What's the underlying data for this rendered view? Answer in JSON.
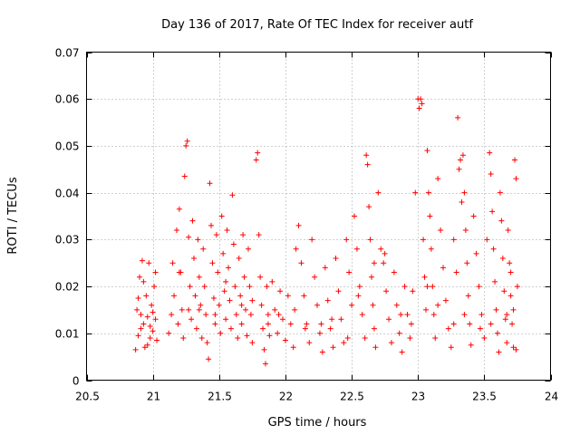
{
  "chart_data": {
    "type": "scatter",
    "title": "Day 136 of 2017, Rate Of TEC Index for receiver autf",
    "xlabel": "GPS time / hours",
    "ylabel": "ROTI / TECUs",
    "xlim": [
      20.5,
      24
    ],
    "ylim": [
      0,
      0.07
    ],
    "xticks": [
      20.5,
      21,
      21.5,
      22,
      22.5,
      23,
      23.5,
      24
    ],
    "xtick_labels": [
      "20.5",
      "21",
      "21.5",
      "22",
      "22.5",
      "23",
      "23.5",
      "24"
    ],
    "yticks": [
      0,
      0.01,
      0.02,
      0.03,
      0.04,
      0.05,
      0.06,
      0.07
    ],
    "ytick_labels": [
      "0",
      "0.01",
      "0.02",
      "0.03",
      "0.04",
      "0.05",
      "0.06",
      "0.07"
    ],
    "grid": true,
    "marker": "+",
    "color": "#ff0000",
    "series": [
      {
        "name": "ROTI",
        "points": [
          [
            20.87,
            0.0065
          ],
          [
            20.88,
            0.015
          ],
          [
            20.89,
            0.0095
          ],
          [
            20.9,
            0.022
          ],
          [
            20.91,
            0.011
          ],
          [
            20.92,
            0.0255
          ],
          [
            20.93,
            0.012
          ],
          [
            20.94,
            0.007
          ],
          [
            20.95,
            0.018
          ],
          [
            20.96,
            0.0135
          ],
          [
            20.97,
            0.025
          ],
          [
            20.98,
            0.009
          ],
          [
            20.99,
            0.016
          ],
          [
            21.0,
            0.0105
          ],
          [
            21.01,
            0.02
          ],
          [
            21.02,
            0.013
          ],
          [
            21.03,
            0.0085
          ],
          [
            20.89,
            0.0175
          ],
          [
            20.93,
            0.021
          ],
          [
            20.96,
            0.0075
          ],
          [
            21.0,
            0.0145
          ],
          [
            21.02,
            0.023
          ],
          [
            20.91,
            0.014
          ],
          [
            20.98,
            0.0115
          ],
          [
            21.12,
            0.01
          ],
          [
            21.14,
            0.014
          ],
          [
            21.15,
            0.025
          ],
          [
            21.16,
            0.018
          ],
          [
            21.18,
            0.032
          ],
          [
            21.19,
            0.012
          ],
          [
            21.2,
            0.0365
          ],
          [
            21.21,
            0.023
          ],
          [
            21.22,
            0.015
          ],
          [
            21.23,
            0.009
          ],
          [
            21.24,
            0.0435
          ],
          [
            21.25,
            0.05
          ],
          [
            21.26,
            0.051
          ],
          [
            21.27,
            0.0305
          ],
          [
            21.28,
            0.02
          ],
          [
            21.29,
            0.013
          ],
          [
            21.3,
            0.034
          ],
          [
            21.31,
            0.026
          ],
          [
            21.32,
            0.018
          ],
          [
            21.33,
            0.011
          ],
          [
            21.34,
            0.03
          ],
          [
            21.35,
            0.022
          ],
          [
            21.36,
            0.016
          ],
          [
            21.37,
            0.009
          ],
          [
            21.38,
            0.028
          ],
          [
            21.39,
            0.02
          ],
          [
            21.4,
            0.014
          ],
          [
            21.41,
            0.008
          ],
          [
            21.42,
            0.0045
          ],
          [
            21.43,
            0.042
          ],
          [
            21.44,
            0.033
          ],
          [
            21.45,
            0.025
          ],
          [
            21.46,
            0.0175
          ],
          [
            21.47,
            0.012
          ],
          [
            21.48,
            0.031
          ],
          [
            21.49,
            0.023
          ],
          [
            21.5,
            0.016
          ],
          [
            21.51,
            0.01
          ],
          [
            21.52,
            0.035
          ],
          [
            21.53,
            0.027
          ],
          [
            21.54,
            0.019
          ],
          [
            21.55,
            0.013
          ],
          [
            21.56,
            0.032
          ],
          [
            21.57,
            0.024
          ],
          [
            21.58,
            0.017
          ],
          [
            21.59,
            0.011
          ],
          [
            21.6,
            0.0395
          ],
          [
            21.61,
            0.029
          ],
          [
            21.62,
            0.02
          ],
          [
            21.63,
            0.014
          ],
          [
            21.64,
            0.009
          ],
          [
            21.65,
            0.026
          ],
          [
            21.66,
            0.018
          ],
          [
            21.67,
            0.012
          ],
          [
            21.68,
            0.031
          ],
          [
            21.69,
            0.022
          ],
          [
            21.7,
            0.015
          ],
          [
            21.71,
            0.0095
          ],
          [
            21.72,
            0.028
          ],
          [
            21.73,
            0.02
          ],
          [
            21.74,
            0.014
          ],
          [
            21.75,
            0.008
          ],
          [
            21.78,
            0.047
          ],
          [
            21.79,
            0.0485
          ],
          [
            21.8,
            0.031
          ],
          [
            21.81,
            0.022
          ],
          [
            21.82,
            0.016
          ],
          [
            21.83,
            0.011
          ],
          [
            21.84,
            0.0065
          ],
          [
            21.85,
            0.0035
          ],
          [
            21.86,
            0.02
          ],
          [
            21.87,
            0.014
          ],
          [
            21.88,
            0.0095
          ],
          [
            21.9,
            0.021
          ],
          [
            21.92,
            0.015
          ],
          [
            21.94,
            0.01
          ],
          [
            21.96,
            0.019
          ],
          [
            21.98,
            0.013
          ],
          [
            22.0,
            0.0085
          ],
          [
            22.02,
            0.018
          ],
          [
            22.04,
            0.012
          ],
          [
            22.06,
            0.007
          ],
          [
            22.08,
            0.028
          ],
          [
            22.1,
            0.033
          ],
          [
            22.12,
            0.025
          ],
          [
            22.14,
            0.018
          ],
          [
            22.16,
            0.012
          ],
          [
            22.18,
            0.008
          ],
          [
            22.2,
            0.03
          ],
          [
            22.22,
            0.022
          ],
          [
            22.24,
            0.016
          ],
          [
            22.26,
            0.01
          ],
          [
            22.28,
            0.006
          ],
          [
            22.3,
            0.024
          ],
          [
            22.32,
            0.017
          ],
          [
            22.34,
            0.011
          ],
          [
            22.36,
            0.007
          ],
          [
            22.38,
            0.026
          ],
          [
            22.4,
            0.019
          ],
          [
            22.42,
            0.013
          ],
          [
            22.44,
            0.008
          ],
          [
            22.46,
            0.03
          ],
          [
            22.48,
            0.023
          ],
          [
            22.5,
            0.016
          ],
          [
            22.52,
            0.035
          ],
          [
            22.54,
            0.028
          ],
          [
            22.56,
            0.02
          ],
          [
            22.58,
            0.014
          ],
          [
            22.6,
            0.009
          ],
          [
            22.61,
            0.048
          ],
          [
            22.62,
            0.046
          ],
          [
            22.63,
            0.037
          ],
          [
            22.64,
            0.03
          ],
          [
            22.65,
            0.022
          ],
          [
            22.66,
            0.016
          ],
          [
            22.67,
            0.011
          ],
          [
            22.68,
            0.007
          ],
          [
            22.7,
            0.04
          ],
          [
            22.72,
            0.028
          ],
          [
            22.74,
            0.025
          ],
          [
            22.76,
            0.019
          ],
          [
            22.78,
            0.013
          ],
          [
            22.8,
            0.008
          ],
          [
            22.82,
            0.023
          ],
          [
            22.84,
            0.016
          ],
          [
            22.86,
            0.01
          ],
          [
            22.88,
            0.006
          ],
          [
            22.9,
            0.02
          ],
          [
            22.92,
            0.014
          ],
          [
            22.94,
            0.009
          ],
          [
            22.96,
            0.019
          ],
          [
            22.98,
            0.04
          ],
          [
            23.0,
            0.06
          ],
          [
            23.01,
            0.058
          ],
          [
            23.02,
            0.06
          ],
          [
            23.03,
            0.059
          ],
          [
            23.04,
            0.03
          ],
          [
            23.05,
            0.022
          ],
          [
            23.06,
            0.015
          ],
          [
            23.07,
            0.049
          ],
          [
            23.08,
            0.04
          ],
          [
            23.09,
            0.035
          ],
          [
            23.1,
            0.028
          ],
          [
            23.11,
            0.02
          ],
          [
            23.12,
            0.014
          ],
          [
            23.13,
            0.009
          ],
          [
            23.15,
            0.043
          ],
          [
            23.17,
            0.032
          ],
          [
            23.19,
            0.024
          ],
          [
            23.21,
            0.017
          ],
          [
            23.23,
            0.011
          ],
          [
            23.25,
            0.007
          ],
          [
            23.27,
            0.03
          ],
          [
            23.29,
            0.023
          ],
          [
            23.3,
            0.056
          ],
          [
            23.31,
            0.045
          ],
          [
            23.32,
            0.047
          ],
          [
            23.33,
            0.038
          ],
          [
            23.34,
            0.048
          ],
          [
            23.35,
            0.04
          ],
          [
            23.36,
            0.032
          ],
          [
            23.37,
            0.025
          ],
          [
            23.38,
            0.018
          ],
          [
            23.39,
            0.012
          ],
          [
            23.4,
            0.0075
          ],
          [
            23.42,
            0.035
          ],
          [
            23.44,
            0.027
          ],
          [
            23.46,
            0.02
          ],
          [
            23.48,
            0.014
          ],
          [
            23.5,
            0.009
          ],
          [
            23.52,
            0.03
          ],
          [
            23.54,
            0.0485
          ],
          [
            23.55,
            0.044
          ],
          [
            23.56,
            0.036
          ],
          [
            23.57,
            0.028
          ],
          [
            23.58,
            0.021
          ],
          [
            23.59,
            0.015
          ],
          [
            23.6,
            0.01
          ],
          [
            23.61,
            0.006
          ],
          [
            23.62,
            0.04
          ],
          [
            23.63,
            0.034
          ],
          [
            23.64,
            0.026
          ],
          [
            23.65,
            0.019
          ],
          [
            23.66,
            0.013
          ],
          [
            23.67,
            0.008
          ],
          [
            23.68,
            0.032
          ],
          [
            23.69,
            0.025
          ],
          [
            23.7,
            0.018
          ],
          [
            23.71,
            0.012
          ],
          [
            23.72,
            0.007
          ],
          [
            23.73,
            0.047
          ],
          [
            23.74,
            0.043
          ],
          [
            23.75,
            0.02
          ],
          [
            23.74,
            0.0065
          ],
          [
            23.72,
            0.015
          ],
          [
            23.7,
            0.023
          ],
          [
            21.2,
            0.023
          ],
          [
            21.35,
            0.015
          ],
          [
            21.55,
            0.021
          ],
          [
            21.75,
            0.017
          ],
          [
            21.95,
            0.014
          ],
          [
            22.15,
            0.011
          ],
          [
            22.35,
            0.013
          ],
          [
            22.55,
            0.018
          ],
          [
            22.75,
            0.027
          ],
          [
            22.95,
            0.012
          ],
          [
            23.15,
            0.016
          ],
          [
            23.35,
            0.014
          ],
          [
            23.55,
            0.012
          ],
          [
            21.27,
            0.015
          ],
          [
            21.47,
            0.014
          ],
          [
            21.67,
            0.016
          ],
          [
            21.87,
            0.012
          ],
          [
            22.07,
            0.015
          ],
          [
            22.27,
            0.012
          ],
          [
            22.47,
            0.009
          ],
          [
            22.67,
            0.025
          ],
          [
            22.87,
            0.014
          ],
          [
            23.07,
            0.02
          ],
          [
            23.27,
            0.012
          ],
          [
            23.47,
            0.011
          ],
          [
            23.67,
            0.014
          ]
        ]
      }
    ]
  }
}
